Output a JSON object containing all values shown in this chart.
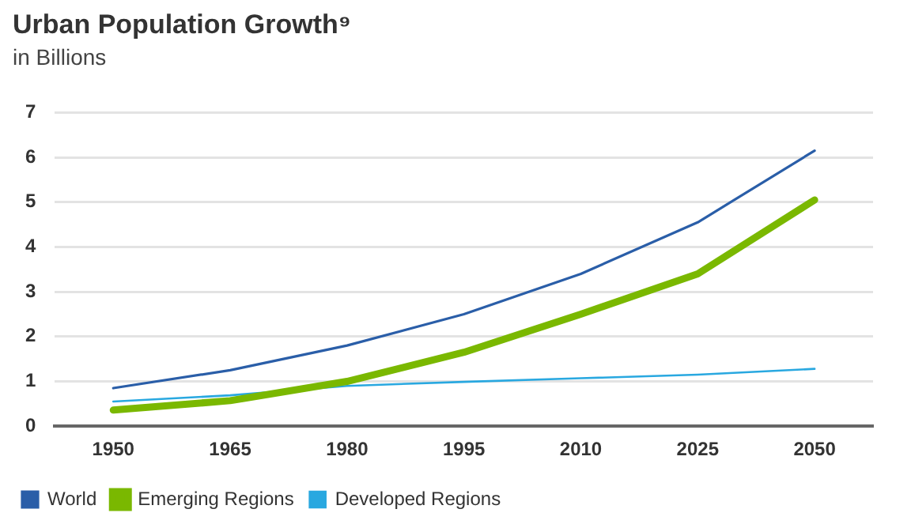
{
  "chart_data": {
    "type": "line",
    "title": "Urban Population Growth⁹",
    "subtitle": "in Billions",
    "categories": [
      "1950",
      "1965",
      "1980",
      "1995",
      "2010",
      "2025",
      "2050"
    ],
    "series": [
      {
        "name": "World",
        "color": "#2a5ea8",
        "values": [
          0.85,
          1.25,
          1.8,
          2.5,
          3.4,
          4.55,
          6.15
        ]
      },
      {
        "name": "Emerging Regions",
        "color": "#7ab800",
        "values": [
          0.36,
          0.57,
          1.0,
          1.65,
          2.5,
          3.4,
          5.05
        ]
      },
      {
        "name": "Developed Regions",
        "color": "#29a8e0",
        "values": [
          0.55,
          0.69,
          0.9,
          0.99,
          1.07,
          1.15,
          1.28
        ]
      }
    ],
    "ylim": [
      0,
      7
    ],
    "yticks": [
      0,
      1,
      2,
      3,
      4,
      5,
      6,
      7
    ],
    "grid": "y",
    "legend": "bottom",
    "marker": "none",
    "line_style": "solid"
  }
}
